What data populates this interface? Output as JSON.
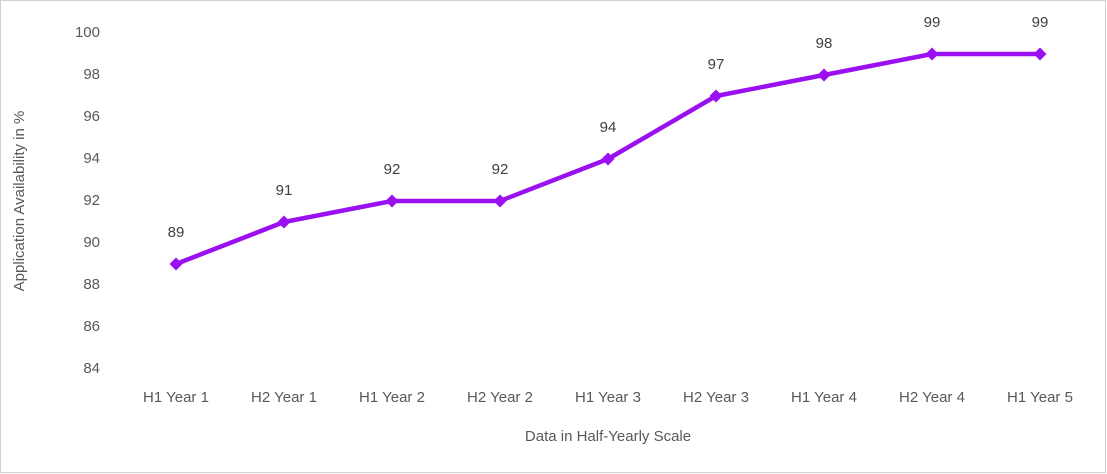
{
  "chart_data": {
    "type": "line",
    "x_label": "Data in Half-Yearly Scale",
    "y_label": "Application Availability in %",
    "categories": [
      "H1 Year 1",
      "H2 Year 1",
      "H1 Year 2",
      "H2 Year 2",
      "H1 Year 3",
      "H2 Year 3",
      "H1 Year 4",
      "H2 Year 4",
      "H1 Year 5"
    ],
    "values": [
      89,
      91,
      92,
      92,
      94,
      97,
      98,
      99,
      99
    ],
    "color": "#9a10f0",
    "ylim": [
      84,
      100
    ],
    "yticks": [
      84,
      86,
      88,
      90,
      92,
      94,
      96,
      98,
      100
    ],
    "grid": false
  }
}
